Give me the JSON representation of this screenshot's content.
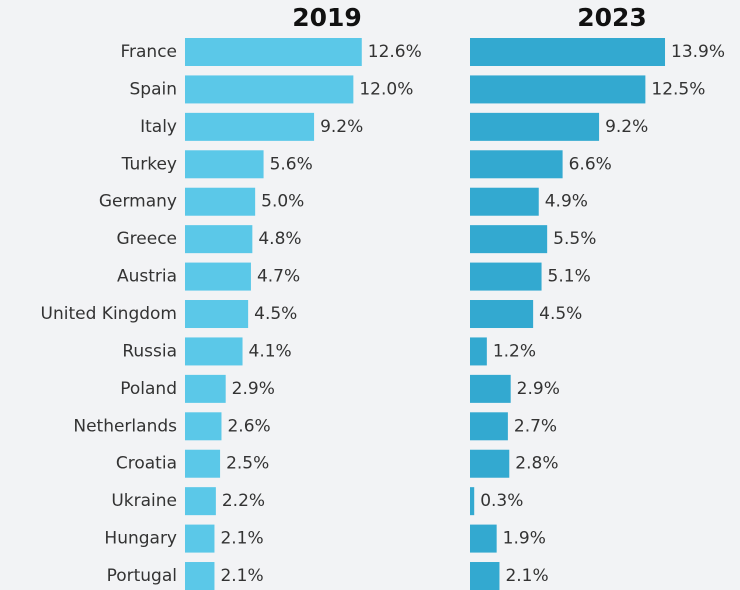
{
  "chart_data": {
    "type": "bar",
    "orientation": "horizontal",
    "categories": [
      "France",
      "Spain",
      "Italy",
      "Turkey",
      "Germany",
      "Greece",
      "Austria",
      "United Kingdom",
      "Russia",
      "Poland",
      "Netherlands",
      "Croatia",
      "Ukraine",
      "Hungary",
      "Portugal"
    ],
    "series": [
      {
        "name": "2019",
        "color": "#5bc8e8",
        "values": [
          12.6,
          12.0,
          9.2,
          5.6,
          5.0,
          4.8,
          4.7,
          4.5,
          4.1,
          2.9,
          2.6,
          2.5,
          2.2,
          2.1,
          2.1
        ],
        "value_labels": [
          "12.6%",
          "12.0%",
          "9.2%",
          "5.6%",
          "5.0%",
          "4.8%",
          "4.7%",
          "4.5%",
          "4.1%",
          "2.9%",
          "2.6%",
          "2.5%",
          "2.2%",
          "2.1%",
          "2.1%"
        ]
      },
      {
        "name": "2023",
        "color": "#33a9d0",
        "values": [
          13.9,
          12.5,
          9.2,
          6.6,
          4.9,
          5.5,
          5.1,
          4.5,
          1.2,
          2.9,
          2.7,
          2.8,
          0.3,
          1.9,
          2.1
        ],
        "value_labels": [
          "13.9%",
          "12.5%",
          "9.2%",
          "6.6%",
          "4.9%",
          "5.5%",
          "5.1%",
          "4.5%",
          "1.2%",
          "2.9%",
          "2.7%",
          "2.8%",
          "0.3%",
          "1.9%",
          "2.1%"
        ]
      }
    ]
  }
}
